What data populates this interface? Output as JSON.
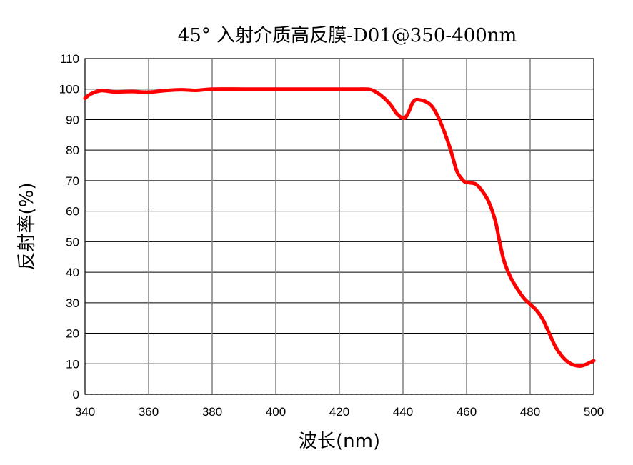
{
  "chart_data": {
    "type": "line",
    "title": "45° 入射介质高反膜-D01@350-400nm",
    "xlabel": "波长(nm)",
    "ylabel": "反射率(%)",
    "xlim": [
      340,
      500
    ],
    "ylim": [
      0,
      110
    ],
    "x_ticks": [
      "340",
      "360",
      "380",
      "400",
      "420",
      "440",
      "460",
      "480",
      "500"
    ],
    "y_ticks": [
      "0",
      "10",
      "20",
      "30",
      "40",
      "50",
      "60",
      "70",
      "80",
      "90",
      "100",
      "110"
    ],
    "grid": true,
    "legend": "none",
    "series": [
      {
        "color": "#ff0000",
        "x": [
          340,
          342,
          345,
          348,
          350,
          355,
          360,
          365,
          370,
          375,
          380,
          390,
          400,
          410,
          420,
          425,
          428,
          430,
          433,
          436,
          438,
          440,
          441,
          442,
          443,
          444,
          445,
          447,
          449,
          451,
          453,
          455,
          457,
          459,
          460,
          461,
          463,
          465,
          467,
          469,
          470,
          471,
          472,
          474,
          476,
          478,
          480,
          482,
          484,
          486,
          488,
          490,
          492,
          494,
          496,
          498,
          500
        ],
        "y": [
          97,
          98.5,
          99.5,
          99.2,
          99.1,
          99.2,
          99.0,
          99.5,
          99.8,
          99.6,
          100,
          100,
          100,
          100,
          100,
          100,
          100,
          99.8,
          98,
          95,
          92,
          90.5,
          91,
          93,
          95.5,
          96.5,
          96.5,
          96,
          94.5,
          91,
          86,
          80,
          73,
          70,
          69.5,
          69.3,
          68.8,
          66.5,
          63,
          57,
          52,
          47,
          43,
          38,
          34.5,
          31.5,
          29.5,
          27.5,
          24.5,
          20,
          15.5,
          12.5,
          10.5,
          9.5,
          9.3,
          10,
          11
        ]
      }
    ]
  }
}
